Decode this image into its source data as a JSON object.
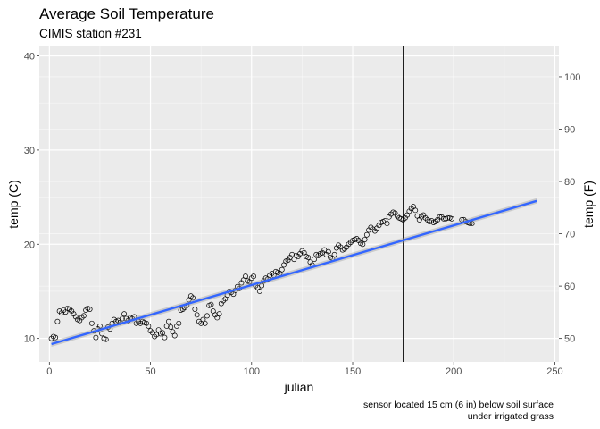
{
  "chart_data": {
    "type": "scatter",
    "title": "Average Soil Temperature",
    "subtitle": "CIMIS station #231",
    "xlabel": "julian",
    "ylabel": "temp (C)",
    "y2label": "temp (F)",
    "caption_lines": [
      "sensor located 15 cm (6 in) below soil surface",
      "under irrigated grass"
    ],
    "xlim": [
      -5,
      252
    ],
    "ylim": [
      7.5,
      41
    ],
    "x_ticks": [
      0,
      50,
      100,
      150,
      200,
      250
    ],
    "y_ticks": [
      10,
      20,
      30,
      40
    ],
    "y2_ticks": [
      50,
      60,
      70,
      80,
      90,
      100
    ],
    "vline_x": 175,
    "fit": {
      "method": "linear",
      "x": [
        1,
        241
      ],
      "y": [
        9.4,
        24.6
      ],
      "color": "#3366FF"
    },
    "points": [
      [
        1,
        10.0
      ],
      [
        2,
        10.2
      ],
      [
        3,
        10.1
      ],
      [
        4,
        11.8
      ],
      [
        5,
        12.9
      ],
      [
        6,
        12.7
      ],
      [
        7,
        13.0
      ],
      [
        8,
        12.8
      ],
      [
        9,
        13.2
      ],
      [
        10,
        13.1
      ],
      [
        11,
        12.9
      ],
      [
        12,
        12.6
      ],
      [
        13,
        12.3
      ],
      [
        14,
        12.0
      ],
      [
        15,
        11.9
      ],
      [
        16,
        12.2
      ],
      [
        17,
        12.4
      ],
      [
        18,
        13.0
      ],
      [
        19,
        13.2
      ],
      [
        20,
        13.1
      ],
      [
        21,
        11.6
      ],
      [
        22,
        10.8
      ],
      [
        23,
        10.1
      ],
      [
        24,
        11.0
      ],
      [
        25,
        11.3
      ],
      [
        26,
        10.5
      ],
      [
        27,
        10.0
      ],
      [
        28,
        9.9
      ],
      [
        29,
        11.2
      ],
      [
        30,
        11.0
      ],
      [
        31,
        11.6
      ],
      [
        32,
        12.0
      ],
      [
        33,
        11.8
      ],
      [
        34,
        11.9
      ],
      [
        35,
        11.7
      ],
      [
        36,
        12.1
      ],
      [
        37,
        12.6
      ],
      [
        38,
        12.1
      ],
      [
        39,
        11.9
      ],
      [
        40,
        12.2
      ],
      [
        41,
        12.1
      ],
      [
        42,
        12.3
      ],
      [
        43,
        11.6
      ],
      [
        44,
        11.8
      ],
      [
        45,
        11.6
      ],
      [
        46,
        11.8
      ],
      [
        47,
        11.7
      ],
      [
        48,
        11.6
      ],
      [
        49,
        11.3
      ],
      [
        50,
        10.8
      ],
      [
        51,
        10.6
      ],
      [
        52,
        10.2
      ],
      [
        53,
        10.4
      ],
      [
        54,
        10.9
      ],
      [
        55,
        10.5
      ],
      [
        56,
        10.6
      ],
      [
        57,
        10.1
      ],
      [
        58,
        11.3
      ],
      [
        59,
        11.8
      ],
      [
        60,
        11.2
      ],
      [
        61,
        10.7
      ],
      [
        62,
        10.3
      ],
      [
        63,
        11.3
      ],
      [
        64,
        11.6
      ],
      [
        65,
        13.0
      ],
      [
        66,
        13.1
      ],
      [
        67,
        13.3
      ],
      [
        68,
        13.5
      ],
      [
        69,
        14.1
      ],
      [
        70,
        14.5
      ],
      [
        71,
        14.3
      ],
      [
        72,
        13.1
      ],
      [
        73,
        12.5
      ],
      [
        74,
        11.8
      ],
      [
        75,
        11.6
      ],
      [
        76,
        12.0
      ],
      [
        77,
        11.6
      ],
      [
        78,
        12.4
      ],
      [
        79,
        13.5
      ],
      [
        80,
        13.6
      ],
      [
        81,
        12.9
      ],
      [
        82,
        12.5
      ],
      [
        83,
        12.2
      ],
      [
        84,
        12.6
      ],
      [
        85,
        13.7
      ],
      [
        86,
        14.0
      ],
      [
        87,
        14.2
      ],
      [
        88,
        14.6
      ],
      [
        89,
        15.0
      ],
      [
        90,
        14.9
      ],
      [
        91,
        14.7
      ],
      [
        92,
        15.1
      ],
      [
        93,
        15.5
      ],
      [
        94,
        15.3
      ],
      [
        95,
        15.9
      ],
      [
        96,
        16.2
      ],
      [
        97,
        16.6
      ],
      [
        98,
        16.1
      ],
      [
        99,
        16.0
      ],
      [
        100,
        16.4
      ],
      [
        101,
        16.6
      ],
      [
        102,
        15.6
      ],
      [
        103,
        15.4
      ],
      [
        104,
        15.0
      ],
      [
        105,
        15.6
      ],
      [
        106,
        16.1
      ],
      [
        107,
        16.4
      ],
      [
        108,
        16.3
      ],
      [
        109,
        16.7
      ],
      [
        110,
        16.9
      ],
      [
        111,
        16.7
      ],
      [
        112,
        17.1
      ],
      [
        113,
        17.0
      ],
      [
        114,
        16.9
      ],
      [
        115,
        17.3
      ],
      [
        116,
        17.8
      ],
      [
        117,
        18.2
      ],
      [
        118,
        18.3
      ],
      [
        119,
        18.6
      ],
      [
        120,
        18.9
      ],
      [
        121,
        18.4
      ],
      [
        122,
        18.8
      ],
      [
        123,
        18.7
      ],
      [
        124,
        19.0
      ],
      [
        125,
        19.3
      ],
      [
        126,
        19.1
      ],
      [
        127,
        18.7
      ],
      [
        128,
        18.6
      ],
      [
        129,
        18.1
      ],
      [
        130,
        17.8
      ],
      [
        131,
        18.4
      ],
      [
        132,
        18.9
      ],
      [
        133,
        18.8
      ],
      [
        134,
        19.0
      ],
      [
        135,
        19.1
      ],
      [
        136,
        19.4
      ],
      [
        137,
        18.9
      ],
      [
        138,
        19.2
      ],
      [
        139,
        18.6
      ],
      [
        140,
        18.5
      ],
      [
        141,
        18.9
      ],
      [
        142,
        19.6
      ],
      [
        143,
        19.9
      ],
      [
        144,
        19.7
      ],
      [
        145,
        19.4
      ],
      [
        146,
        19.5
      ],
      [
        147,
        19.7
      ],
      [
        148,
        20.0
      ],
      [
        149,
        20.2
      ],
      [
        150,
        20.4
      ],
      [
        151,
        20.5
      ],
      [
        152,
        20.6
      ],
      [
        153,
        20.4
      ],
      [
        154,
        20.1
      ],
      [
        155,
        20.0
      ],
      [
        156,
        20.5
      ],
      [
        157,
        21.0
      ],
      [
        158,
        21.5
      ],
      [
        159,
        21.8
      ],
      [
        160,
        21.6
      ],
      [
        161,
        21.4
      ],
      [
        162,
        21.7
      ],
      [
        163,
        22.0
      ],
      [
        164,
        22.3
      ],
      [
        165,
        22.4
      ],
      [
        166,
        22.5
      ],
      [
        167,
        22.2
      ],
      [
        168,
        22.9
      ],
      [
        169,
        23.2
      ],
      [
        170,
        23.4
      ],
      [
        171,
        23.3
      ],
      [
        172,
        23.0
      ],
      [
        173,
        22.8
      ],
      [
        174,
        22.7
      ],
      [
        175,
        22.6
      ],
      [
        176,
        22.8
      ],
      [
        177,
        23.1
      ],
      [
        178,
        23.5
      ],
      [
        179,
        23.8
      ],
      [
        180,
        24.0
      ],
      [
        181,
        23.6
      ],
      [
        182,
        23.0
      ],
      [
        183,
        22.6
      ],
      [
        184,
        22.9
      ],
      [
        185,
        23.1
      ],
      [
        186,
        22.8
      ],
      [
        187,
        22.6
      ],
      [
        188,
        22.4
      ],
      [
        189,
        22.5
      ],
      [
        190,
        22.3
      ],
      [
        191,
        22.4
      ],
      [
        192,
        22.6
      ],
      [
        193,
        22.9
      ],
      [
        194,
        22.9
      ],
      [
        195,
        22.7
      ],
      [
        196,
        22.7
      ],
      [
        197,
        22.8
      ],
      [
        198,
        22.8
      ],
      [
        199,
        22.7
      ],
      [
        204,
        22.6
      ],
      [
        205,
        22.6
      ],
      [
        206,
        22.4
      ],
      [
        207,
        22.3
      ],
      [
        208,
        22.2
      ],
      [
        209,
        22.2
      ]
    ]
  }
}
